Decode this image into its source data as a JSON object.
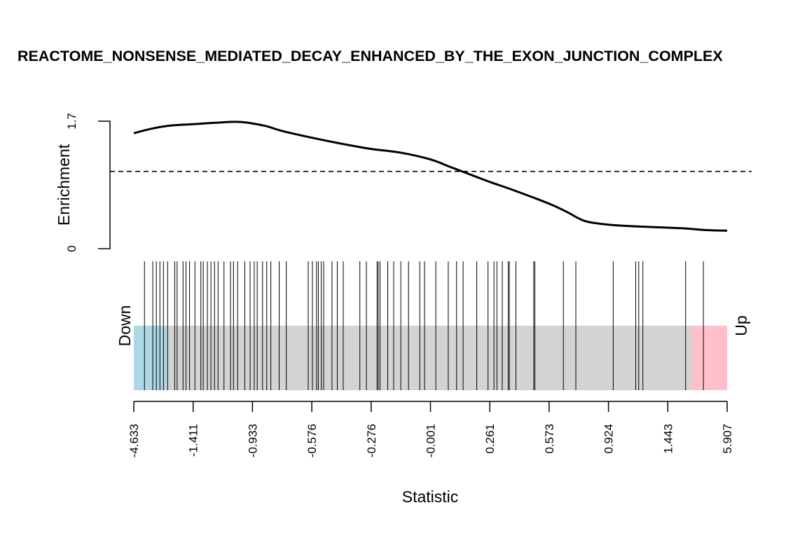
{
  "chart_data": {
    "type": "barcode",
    "title": "REACTOME_NONSENSE_MEDIATED_DECAY_ENHANCED_BY_THE_EXON_JUNCTION_COMPLEX",
    "xlabel": "Statistic",
    "ylabel": "Enrichment",
    "ylim": [
      0,
      1.7
    ],
    "y_ticks": [
      "0",
      "1.7"
    ],
    "x_ticks": [
      "-4.633",
      "-1.411",
      "-0.933",
      "-0.576",
      "-0.276",
      "-0.001",
      "0.261",
      "0.573",
      "0.924",
      "1.443",
      "5.907"
    ],
    "down_label": "Down",
    "up_label": "Up",
    "colors": {
      "down": "#add8e6",
      "middle": "#d3d3d3",
      "up": "#ffc0cb",
      "line": "#000000"
    },
    "baseline_enrichment": 1.03,
    "enrichment_curve": {
      "rank_position": [
        0,
        0.03,
        0.06,
        0.1,
        0.14,
        0.18,
        0.22,
        0.25,
        0.3,
        0.35,
        0.4,
        0.45,
        0.5,
        0.53,
        0.56,
        0.6,
        0.64,
        0.7,
        0.73,
        0.76,
        0.8,
        0.84,
        0.87,
        0.9,
        0.93,
        0.96,
        1.0
      ],
      "enrichment": [
        1.54,
        1.6,
        1.64,
        1.66,
        1.68,
        1.69,
        1.64,
        1.57,
        1.48,
        1.4,
        1.33,
        1.28,
        1.19,
        1.1,
        1.01,
        0.89,
        0.78,
        0.6,
        0.49,
        0.37,
        0.32,
        0.3,
        0.29,
        0.28,
        0.27,
        0.25,
        0.24
      ]
    },
    "gene_rank_positions": [
      0.018,
      0.032,
      0.038,
      0.044,
      0.05,
      0.057,
      0.069,
      0.073,
      0.083,
      0.088,
      0.094,
      0.103,
      0.113,
      0.117,
      0.124,
      0.13,
      0.136,
      0.142,
      0.152,
      0.163,
      0.168,
      0.175,
      0.187,
      0.196,
      0.203,
      0.208,
      0.217,
      0.224,
      0.231,
      0.245,
      0.257,
      0.294,
      0.301,
      0.308,
      0.311,
      0.316,
      0.32,
      0.334,
      0.343,
      0.353,
      0.381,
      0.392,
      0.41,
      0.412,
      0.415,
      0.428,
      0.438,
      0.45,
      0.463,
      0.482,
      0.49,
      0.509,
      0.53,
      0.544,
      0.555,
      0.578,
      0.597,
      0.607,
      0.612,
      0.621,
      0.631,
      0.633,
      0.644,
      0.674,
      0.676,
      0.724,
      0.745,
      0.808,
      0.846,
      0.851,
      0.858,
      0.93,
      0.96
    ]
  }
}
